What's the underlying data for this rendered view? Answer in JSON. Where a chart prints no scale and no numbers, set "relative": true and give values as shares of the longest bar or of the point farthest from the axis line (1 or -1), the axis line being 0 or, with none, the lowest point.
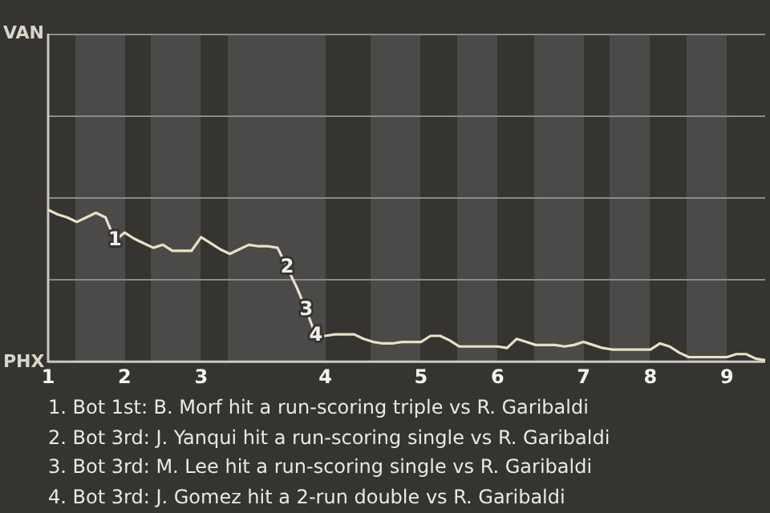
{
  "chart_data": {
    "type": "line",
    "relative": true,
    "categories": [
      "1",
      null,
      null,
      null,
      null,
      null,
      null,
      null,
      "2",
      null,
      null,
      null,
      null,
      null,
      null,
      null,
      "3",
      null,
      null,
      null,
      null,
      null,
      null,
      null,
      null,
      null,
      null,
      null,
      null,
      "4",
      null,
      null,
      null,
      null,
      null,
      null,
      null,
      null,
      null,
      "5",
      null,
      null,
      null,
      null,
      null,
      null,
      null,
      "6",
      null,
      null,
      null,
      null,
      null,
      null,
      null,
      null,
      "7",
      null,
      null,
      null,
      null,
      null,
      null,
      "8",
      null,
      null,
      null,
      null,
      null,
      null,
      null,
      "9",
      null,
      null,
      null,
      null
    ],
    "series": [
      {
        "color": "#e6e2c6",
        "values": [
          1,
          0.97,
          0.95,
          0.92,
          0.95,
          0.98,
          0.95,
          0.8,
          0.85,
          0.81,
          0.78,
          0.75,
          0.77,
          0.73,
          0.73,
          0.73,
          0.82,
          0.78,
          0.74,
          0.71,
          0.74,
          0.77,
          0.76,
          0.76,
          0.75,
          0.62,
          0.49,
          0.34,
          0.17,
          0.17,
          0.18,
          0.18,
          0.18,
          0.15,
          0.13,
          0.12,
          0.12,
          0.13,
          0.13,
          0.13,
          0.17,
          0.17,
          0.14,
          0.1,
          0.1,
          0.1,
          0.1,
          0.1,
          0.09,
          0.15,
          0.13,
          0.11,
          0.11,
          0.11,
          0.1,
          0.11,
          0.13,
          0.11,
          0.09,
          0.08,
          0.08,
          0.08,
          0.08,
          0.08,
          0.12,
          0.1,
          0.06,
          0.03,
          0.03,
          0.03,
          0.03,
          0.03,
          0.05,
          0.05,
          0.02,
          0.01
        ]
      }
    ],
    "ref_lines": [
      {
        "axis": "y",
        "value": 0.54,
        "color": "#8a8a88"
      },
      {
        "axis": "y",
        "value": 1.08,
        "color": "#8a8a88"
      },
      {
        "axis": "y",
        "value": 1.62,
        "color": "#8a8a88"
      },
      {
        "axis": "y",
        "value": 2.16,
        "color": "#8a8a88"
      }
    ],
    "annotations": [
      "VAN",
      "PHX",
      {
        "text": "1",
        "y": 0.8
      },
      {
        "text": "2",
        "y": 0.62
      },
      {
        "text": "3",
        "y": 0.34
      },
      {
        "text": "4",
        "y": 0.17
      },
      "1. Bot 1st: B. Morf hit a run-scoring triple vs R. Garibaldi",
      "2. Bot 3rd: J. Yanqui hit a run-scoring single vs R. Garibaldi",
      "3. Bot 3rd: M. Lee hit a run-scoring single vs R. Garibaldi",
      "4. Bot 3rd: J. Gomez hit a 2-run double vs R. Garibaldi"
    ],
    "legend": false,
    "marker": "none",
    "line_style": "solid"
  }
}
